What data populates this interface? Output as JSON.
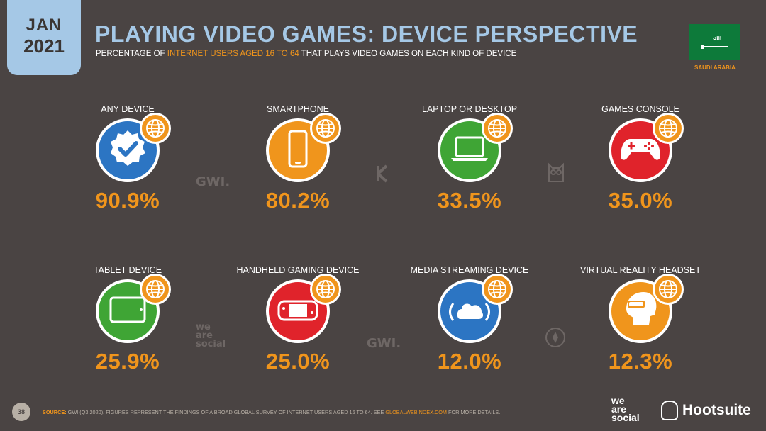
{
  "header": {
    "month": "JAN",
    "year": "2021",
    "title": "PLAYING VIDEO GAMES: DEVICE PERSPECTIVE",
    "subtitle_pre": "PERCENTAGE OF ",
    "subtitle_highlight": "INTERNET USERS AGED 16 TO 64",
    "subtitle_post": " THAT PLAYS VIDEO GAMES ON EACH KIND OF DEVICE",
    "country": "SAUDI ARABIA"
  },
  "colors": {
    "background": "#4a4443",
    "accent_orange": "#f0951c",
    "title_blue": "#a5c8e6",
    "blue": "#2c75c3",
    "green": "#3fa535",
    "red": "#e0232b",
    "orange": "#f0951c"
  },
  "devices": [
    {
      "label": "ANY DEVICE",
      "value": "90.9%",
      "icon": "verified-badge-icon",
      "color": "#2c75c3"
    },
    {
      "label": "SMARTPHONE",
      "value": "80.2%",
      "icon": "smartphone-icon",
      "color": "#f0951c"
    },
    {
      "label": "LAPTOP OR DESKTOP",
      "value": "33.5%",
      "icon": "laptop-icon",
      "color": "#3fa535"
    },
    {
      "label": "GAMES CONSOLE",
      "value": "35.0%",
      "icon": "gamepad-icon",
      "color": "#e0232b"
    },
    {
      "label": "TABLET DEVICE",
      "value": "25.9%",
      "icon": "tablet-icon",
      "color": "#3fa535"
    },
    {
      "label": "HANDHELD GAMING DEVICE",
      "value": "25.0%",
      "icon": "handheld-console-icon",
      "color": "#e0232b"
    },
    {
      "label": "MEDIA STREAMING DEVICE",
      "value": "12.0%",
      "icon": "cloud-streaming-icon",
      "color": "#2c75c3"
    },
    {
      "label": "VIRTUAL REALITY HEADSET",
      "value": "12.3%",
      "icon": "vr-headset-icon",
      "color": "#f0951c"
    }
  ],
  "watermarks": {
    "gwi": "GWI.",
    "we_are_social": [
      "we",
      "are",
      "social"
    ]
  },
  "footer": {
    "page_number": "38",
    "source_label": "SOURCE:",
    "source_text": " GWI (Q3 2020). FIGURES REPRESENT THE FINDINGS OF A BROAD GLOBAL SURVEY OF INTERNET USERS AGED 16 TO 64. SEE ",
    "source_link": "GLOBALWEBINDEX.COM",
    "source_end": " FOR MORE DETAILS.",
    "brand_was": [
      "we",
      "are",
      "social"
    ],
    "brand_hootsuite": "Hootsuite"
  }
}
